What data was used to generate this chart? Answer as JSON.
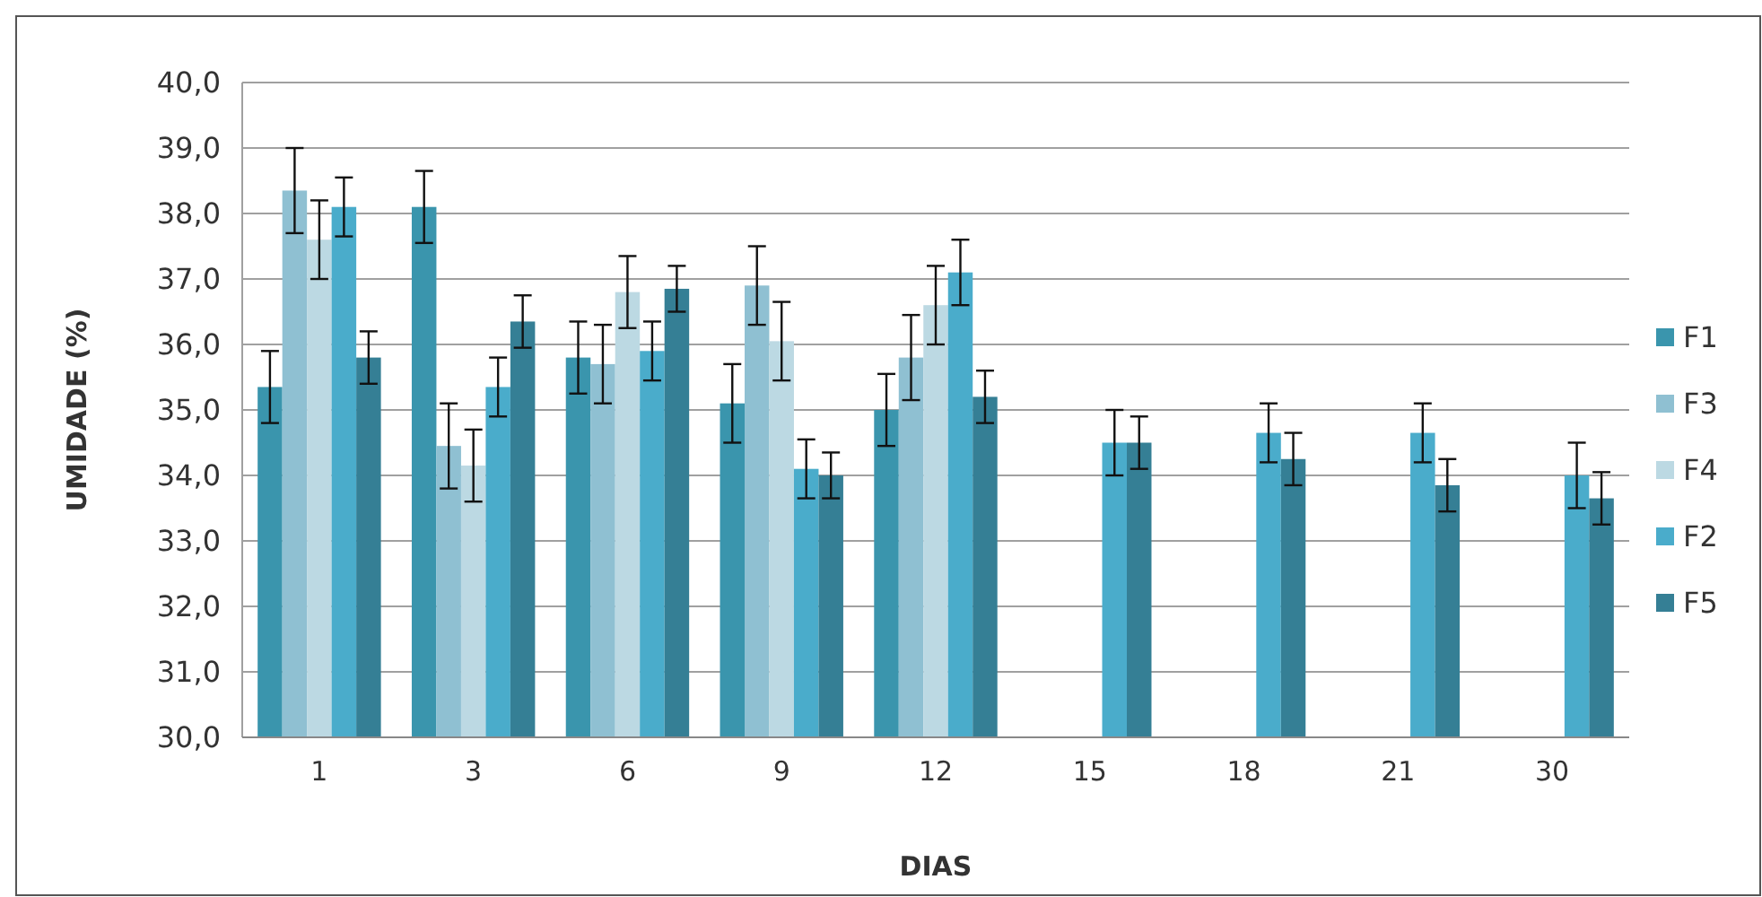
{
  "chart_data": {
    "type": "bar",
    "xlabel": "DIAS",
    "ylabel": "UMIDADE (%)",
    "categories": [
      "1",
      "3",
      "6",
      "9",
      "12",
      "15",
      "18",
      "21",
      "30"
    ],
    "ylim": [
      30,
      40
    ],
    "yticks": [
      {
        "value": 30,
        "label": "30,0"
      },
      {
        "value": 31,
        "label": "31,0"
      },
      {
        "value": 32,
        "label": "32,0"
      },
      {
        "value": 33,
        "label": "33,0"
      },
      {
        "value": 34,
        "label": "34,0"
      },
      {
        "value": 35,
        "label": "35,0"
      },
      {
        "value": 36,
        "label": "36,0"
      },
      {
        "value": 37,
        "label": "37,0"
      },
      {
        "value": 38,
        "label": "38,0"
      },
      {
        "value": 39,
        "label": "39,0"
      },
      {
        "value": 40,
        "label": "40,0"
      }
    ],
    "grid": "y",
    "legend": "right",
    "series": [
      {
        "name": "F1",
        "color": "#3a95ad",
        "values": [
          35.35,
          38.1,
          35.8,
          35.1,
          35.0,
          null,
          null,
          null,
          null
        ],
        "errors": [
          0.55,
          0.55,
          0.55,
          0.6,
          0.55,
          null,
          null,
          null,
          null
        ]
      },
      {
        "name": "F3",
        "color": "#8fc0d2",
        "values": [
          38.35,
          34.45,
          35.7,
          36.9,
          35.8,
          null,
          null,
          null,
          null
        ],
        "errors": [
          0.65,
          0.65,
          0.6,
          0.6,
          0.65,
          null,
          null,
          null,
          null
        ]
      },
      {
        "name": "F4",
        "color": "#bcd9e3",
        "values": [
          37.6,
          34.15,
          36.8,
          36.05,
          36.6,
          null,
          null,
          null,
          null
        ],
        "errors": [
          0.6,
          0.55,
          0.55,
          0.6,
          0.6,
          null,
          null,
          null,
          null
        ]
      },
      {
        "name": "F2",
        "color": "#4aaccb",
        "values": [
          38.1,
          35.35,
          35.9,
          34.1,
          37.1,
          34.5,
          34.65,
          34.65,
          34.0
        ],
        "errors": [
          0.45,
          0.45,
          0.45,
          0.45,
          0.5,
          0.5,
          0.45,
          0.45,
          0.5
        ]
      },
      {
        "name": "F5",
        "color": "#357f95",
        "values": [
          35.8,
          36.35,
          36.85,
          34.0,
          35.2,
          34.5,
          34.25,
          33.85,
          33.65
        ],
        "errors": [
          0.4,
          0.4,
          0.35,
          0.35,
          0.4,
          0.4,
          0.4,
          0.4,
          0.4
        ]
      }
    ]
  }
}
